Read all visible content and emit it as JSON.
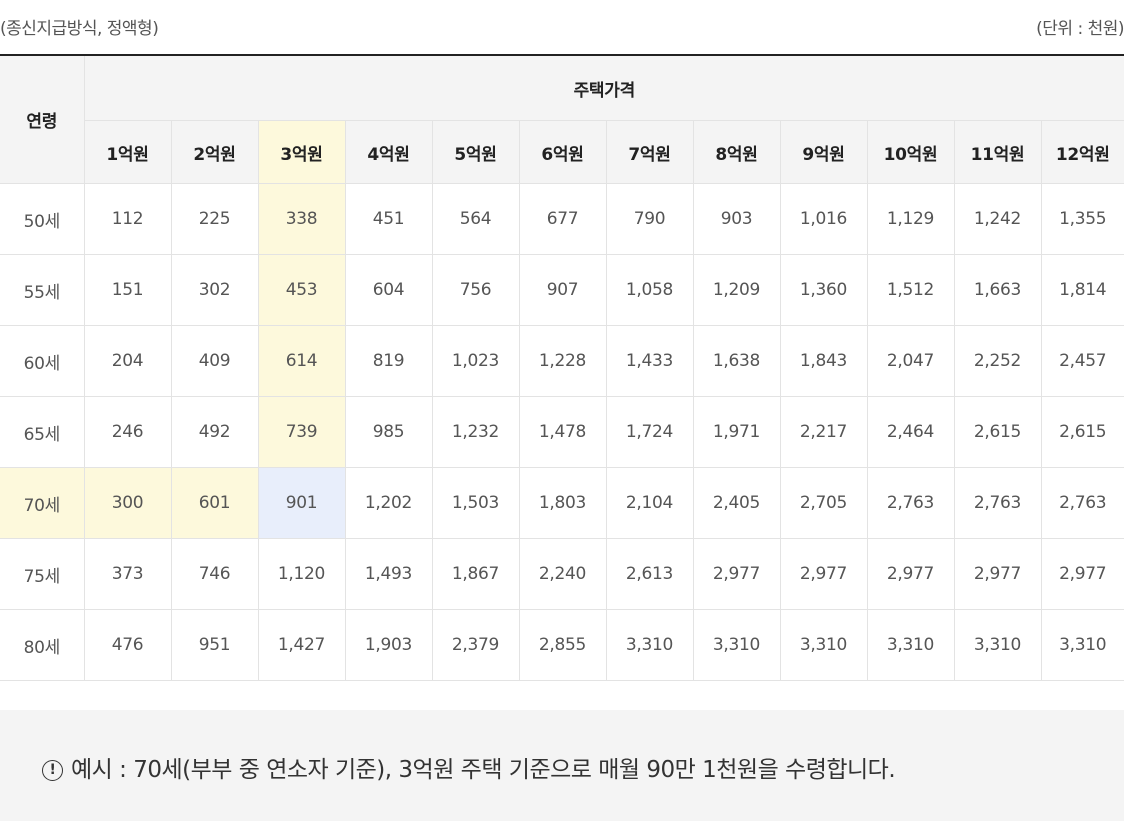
{
  "header": {
    "left": "(종신지급방식, 정액형)",
    "right": "(단위 : 천원)"
  },
  "table": {
    "age_header": "연령",
    "price_header": "주택가격",
    "columns": [
      "1억원",
      "2억원",
      "3억원",
      "4억원",
      "5억원",
      "6억원",
      "7억원",
      "8억원",
      "9억원",
      "10억원",
      "11억원",
      "12억원"
    ],
    "rows": [
      {
        "age": "50세",
        "values": [
          "112",
          "225",
          "338",
          "451",
          "564",
          "677",
          "790",
          "903",
          "1,016",
          "1,129",
          "1,242",
          "1,355"
        ]
      },
      {
        "age": "55세",
        "values": [
          "151",
          "302",
          "453",
          "604",
          "756",
          "907",
          "1,058",
          "1,209",
          "1,360",
          "1,512",
          "1,663",
          "1,814"
        ]
      },
      {
        "age": "60세",
        "values": [
          "204",
          "409",
          "614",
          "819",
          "1,023",
          "1,228",
          "1,433",
          "1,638",
          "1,843",
          "2,047",
          "2,252",
          "2,457"
        ]
      },
      {
        "age": "65세",
        "values": [
          "246",
          "492",
          "739",
          "985",
          "1,232",
          "1,478",
          "1,724",
          "1,971",
          "2,217",
          "2,464",
          "2,615",
          "2,615"
        ]
      },
      {
        "age": "70세",
        "values": [
          "300",
          "601",
          "901",
          "1,202",
          "1,503",
          "1,803",
          "2,104",
          "2,405",
          "2,705",
          "2,763",
          "2,763",
          "2,763"
        ]
      },
      {
        "age": "75세",
        "values": [
          "373",
          "746",
          "1,120",
          "1,493",
          "1,867",
          "2,240",
          "2,613",
          "2,977",
          "2,977",
          "2,977",
          "2,977",
          "2,977"
        ]
      },
      {
        "age": "80세",
        "values": [
          "476",
          "951",
          "1,427",
          "1,903",
          "2,379",
          "2,855",
          "3,310",
          "3,310",
          "3,310",
          "3,310",
          "3,310",
          "3,310"
        ]
      }
    ],
    "highlight": {
      "column": "3억원",
      "row": "70세",
      "selected_cell": "901"
    },
    "colors": {
      "highlight": "#fdf9dc",
      "selected": "#e8eefb",
      "header_bg": "#f4f4f4",
      "top_border": "#222222"
    }
  },
  "note": {
    "icon": "info-circle-icon",
    "icon_glyph": "!",
    "text": "예시 : 70세(부부 중 연소자 기준), 3억원 주택 기준으로 매월 90만 1천원을 수령합니다."
  }
}
